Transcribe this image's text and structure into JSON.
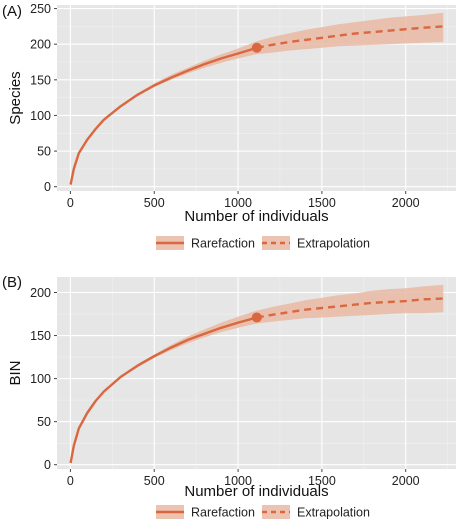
{
  "chart_data": [
    {
      "type": "line",
      "panel_label": "(A)",
      "xlabel": "Number of individuals",
      "ylabel": "Species",
      "xlim": [
        -80,
        2300
      ],
      "ylim": [
        -6,
        255
      ],
      "x_ticks": [
        0,
        500,
        1000,
        1500,
        2000
      ],
      "y_ticks": [
        0,
        50,
        100,
        150,
        200,
        250
      ],
      "grid": true,
      "legend_position": "bottom",
      "color": "#d9673f",
      "ribbon_color": "#e9b9a2",
      "observed_point": {
        "x": 1112,
        "y": 195
      },
      "series": [
        {
          "name": "Rarefaction",
          "line_style": "solid",
          "x": [
            1,
            20,
            50,
            100,
            150,
            200,
            300,
            400,
            500,
            600,
            700,
            800,
            900,
            1000,
            1112
          ],
          "y": [
            3,
            25,
            47,
            66,
            81,
            94,
            113,
            129,
            142,
            153,
            163,
            172,
            180,
            187,
            195
          ],
          "lower": [
            3,
            25,
            47,
            66,
            81,
            93,
            112,
            127,
            140,
            150,
            159,
            167,
            174,
            180,
            186
          ],
          "upper": [
            3,
            25,
            47,
            67,
            82,
            95,
            114,
            131,
            145,
            157,
            167,
            177,
            186,
            194,
            204
          ]
        },
        {
          "name": "Extrapolation",
          "line_style": "dashed",
          "x": [
            1112,
            1200,
            1300,
            1400,
            1500,
            1600,
            1700,
            1800,
            1900,
            2000,
            2100,
            2224
          ],
          "y": [
            195,
            199,
            203,
            206,
            209,
            212,
            215,
            217,
            219,
            221,
            223,
            225
          ],
          "lower": [
            186,
            188,
            191,
            193,
            195,
            197,
            198,
            199,
            200,
            201,
            202,
            203
          ],
          "upper": [
            204,
            210,
            215,
            220,
            224,
            228,
            231,
            234,
            237,
            239,
            241,
            244
          ]
        }
      ]
    },
    {
      "type": "line",
      "panel_label": "(B)",
      "xlabel": "Number of individuals",
      "ylabel": "BIN",
      "xlim": [
        -80,
        2300
      ],
      "ylim": [
        -5,
        218
      ],
      "x_ticks": [
        0,
        500,
        1000,
        1500,
        2000
      ],
      "y_ticks": [
        0,
        50,
        100,
        150,
        200
      ],
      "grid": true,
      "legend_position": "bottom",
      "color": "#d9673f",
      "ribbon_color": "#e9b9a2",
      "observed_point": {
        "x": 1112,
        "y": 171
      },
      "series": [
        {
          "name": "Rarefaction",
          "line_style": "solid",
          "x": [
            1,
            20,
            50,
            100,
            150,
            200,
            300,
            400,
            500,
            600,
            700,
            800,
            900,
            1000,
            1112
          ],
          "y": [
            2,
            22,
            42,
            60,
            74,
            85,
            102,
            115,
            126,
            136,
            145,
            152,
            159,
            165,
            171
          ],
          "lower": [
            2,
            22,
            42,
            60,
            74,
            84,
            101,
            113,
            124,
            133,
            141,
            148,
            154,
            159,
            164
          ],
          "upper": [
            2,
            22,
            42,
            61,
            75,
            86,
            103,
            117,
            128,
            139,
            149,
            157,
            165,
            172,
            179
          ]
        },
        {
          "name": "Extrapolation",
          "line_style": "dashed",
          "x": [
            1112,
            1200,
            1300,
            1400,
            1500,
            1600,
            1700,
            1800,
            1900,
            2000,
            2100,
            2224
          ],
          "y": [
            171,
            174,
            177,
            180,
            182,
            184,
            186,
            188,
            189,
            190,
            192,
            193
          ],
          "lower": [
            164,
            166,
            168,
            170,
            171,
            172,
            173,
            174,
            175,
            176,
            176,
            177
          ],
          "upper": [
            179,
            183,
            187,
            191,
            194,
            197,
            199,
            202,
            204,
            205,
            207,
            209
          ]
        }
      ]
    }
  ]
}
